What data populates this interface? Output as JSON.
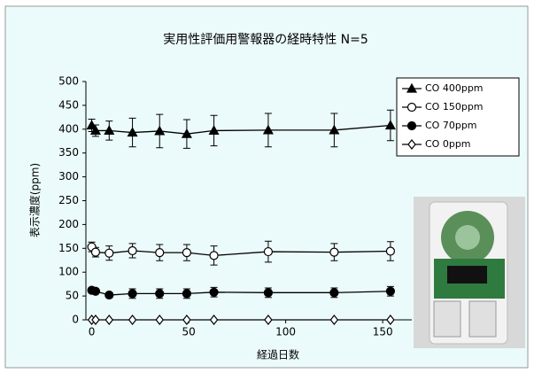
{
  "chart_data": {
    "type": "line",
    "title": "実用性評価用警報器の経時特性 N=5",
    "xlabel": "経過日数",
    "ylabel": "表示濃度(ppm)",
    "x": [
      0,
      2,
      9,
      21,
      35,
      49,
      63,
      91,
      125,
      154
    ],
    "xlim": [
      -3,
      165
    ],
    "xticks": [
      0,
      50,
      100,
      150
    ],
    "ylim": [
      0,
      500
    ],
    "yticks": [
      0,
      50,
      100,
      150,
      200,
      250,
      300,
      350,
      400,
      450,
      500
    ],
    "legend": "top-right",
    "series": [
      {
        "name": "CO 400ppm",
        "color": "#000000",
        "marker": "triangle",
        "fill": "#000000",
        "values": [
          408,
          397,
          397,
          393,
          396,
          390,
          397,
          398,
          398,
          408
        ],
        "errors": [
          13,
          12,
          20,
          30,
          35,
          30,
          32,
          35,
          35,
          32
        ]
      },
      {
        "name": "CO 150ppm",
        "color": "#000000",
        "marker": "circle",
        "fill": "#ffffff",
        "values": [
          153,
          142,
          140,
          145,
          141,
          141,
          135,
          143,
          142,
          144
        ],
        "errors": [
          10,
          10,
          15,
          15,
          17,
          17,
          20,
          22,
          18,
          20
        ]
      },
      {
        "name": "CO 70ppm",
        "color": "#000000",
        "marker": "circle",
        "fill": "#000000",
        "values": [
          62,
          60,
          52,
          55,
          55,
          55,
          58,
          57,
          57,
          60
        ],
        "errors": [
          5,
          5,
          5,
          10,
          10,
          10,
          10,
          10,
          10,
          10
        ]
      },
      {
        "name": "CO 0ppm",
        "color": "#000000",
        "marker": "diamond",
        "fill": "#ffffff",
        "values": [
          0,
          0,
          0,
          0,
          0,
          0,
          0,
          0,
          0,
          0
        ]
      }
    ]
  }
}
